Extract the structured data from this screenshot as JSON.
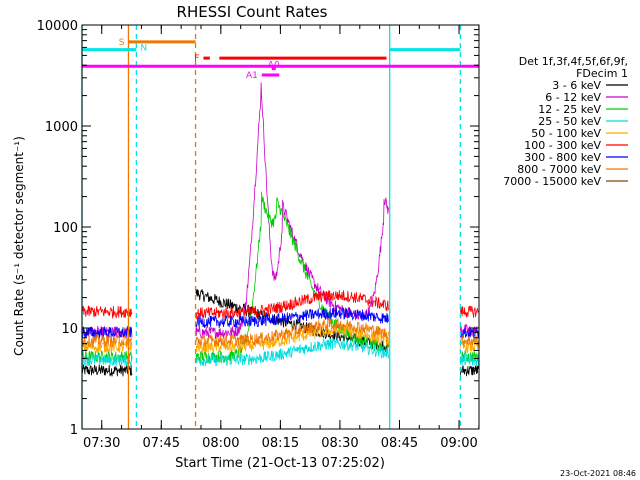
{
  "chart_data": {
    "type": "line",
    "title": "RHESSI Count Rates",
    "xlabel": "Start Time (21-Oct-13 07:25:02)",
    "ylabel": "Count Rate (s⁻¹ detector segment⁻¹)",
    "y_scale": "log",
    "ylim": [
      1,
      10000
    ],
    "xlim_minutes_from_start": [
      0,
      100
    ],
    "x_tick_labels": [
      "07:30",
      "07:45",
      "08:00",
      "08:15",
      "08:30",
      "08:45",
      "09:00"
    ],
    "x_tick_minutes": [
      4.97,
      19.97,
      34.97,
      49.97,
      64.97,
      79.97,
      94.97
    ],
    "y_tick_labels": [
      "1",
      "10",
      "100",
      "1000",
      "10000"
    ],
    "y_tick_values": [
      1,
      10,
      100,
      1000,
      10000
    ],
    "legend_header": [
      "Det 1f,3f,4f,5f,6f,9f,",
      "FDecim 1"
    ],
    "legend_placement": "right",
    "timestamp": "23-Oct-2021 08:46",
    "series": [
      {
        "name": "3 - 6 keV",
        "color": "#000000",
        "level": 3.8
      },
      {
        "name": "6 - 12 keV",
        "color": "#cc00cc",
        "level": 9.0
      },
      {
        "name": "12 - 25 keV",
        "color": "#00cc00",
        "level": 5.2
      },
      {
        "name": "25 - 50 keV",
        "color": "#00dddd",
        "level": 4.8
      },
      {
        "name": "50 - 100 keV",
        "color": "#ffaa00",
        "level": 6.5
      },
      {
        "name": "100 - 300 keV",
        "color": "#ff0000",
        "level": 14.5
      },
      {
        "name": "300 - 800 keV",
        "color": "#0000ff",
        "level": 9.0
      },
      {
        "name": "800 - 7000 keV",
        "color": "#ee7700",
        "level": 7.5
      },
      {
        "name": "7000 - 15000 keV",
        "color": "#884400",
        "level": null
      }
    ],
    "gaps_minutes": [
      [
        12.7,
        28.6
      ],
      [
        77.3,
        95.2
      ]
    ],
    "peaks": [
      {
        "series": "6 - 12 keV",
        "t": 45.0,
        "value": 3100
      },
      {
        "series": "12 - 25 keV",
        "t": 45.2,
        "value": 200
      },
      {
        "series": "6 - 12 keV",
        "t": 50.5,
        "value": 165
      },
      {
        "series": "12 - 25 keV",
        "t": 49.0,
        "value": 180
      },
      {
        "series": "6 - 12 keV",
        "t": 76.0,
        "value": 200
      }
    ],
    "vertical_markers": [
      {
        "t": 0,
        "color": "#00e5e5",
        "style": "solid"
      },
      {
        "t": 11.7,
        "color": "#ee7700",
        "style": "solid"
      },
      {
        "t": 13.7,
        "color": "#00e5e5",
        "style": "dashed"
      },
      {
        "t": 28.6,
        "color": "#ee7700",
        "style": "dashed"
      },
      {
        "t": 77.5,
        "color": "#00e5e5",
        "style": "solid"
      },
      {
        "t": 95.3,
        "color": "#00e5e5",
        "style": "dashed"
      }
    ],
    "flag_bars": [
      {
        "label": "S",
        "color": "#ee7700",
        "t0": 11.7,
        "t1": 28.6,
        "value": 6800
      },
      {
        "label": "N",
        "color": "#00e5e5",
        "t0": 0,
        "t1": 13.7,
        "value": 5700
      },
      {
        "label": "",
        "color": "#00e5e5",
        "t0": 77.5,
        "t1": 95.3,
        "value": 5700
      },
      {
        "label": "F",
        "color": "#ff0000",
        "t0": 30.6,
        "t1": 32.2,
        "value": 4700
      },
      {
        "label": "",
        "color": "#ff0000",
        "t0": 34.6,
        "t1": 76.7,
        "value": 4700
      },
      {
        "label": "",
        "color": "#ff00ff",
        "t0": 0,
        "t1": 100,
        "value": 3900
      },
      {
        "label": "A1",
        "color": "#ff00ff",
        "t0": 45.3,
        "t1": 49.7,
        "value": 3200
      },
      {
        "label": "A0",
        "color": "#ff00ff",
        "t0": 47.8,
        "t1": 48.8,
        "value": 3700
      }
    ]
  }
}
